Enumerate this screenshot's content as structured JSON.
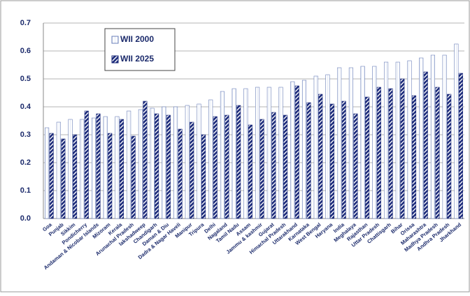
{
  "chart_data": {
    "type": "bar",
    "categories": [
      "Goa",
      "Punjab",
      "Sikkim",
      "Pondicherry",
      "Andaman & Nicobar Islands",
      "Mizoram",
      "Kerala",
      "Arunachal Pradesh",
      "lakshadweep",
      "Chandigarh",
      "Daman & Diu",
      "Dadra & Nagar Haveli",
      "Manipur",
      "Tripura",
      "Delhi",
      "Nagaland",
      "Tamil Nadu",
      "Assam",
      "Jammu & kashmir",
      "Gujarat",
      "Himachal Pradesh",
      "Uttarakhand",
      "Karnataka",
      "West Bengal",
      "Haryana",
      "India",
      "Meghalaya",
      "Rajasthan",
      "Uttar Pradesh",
      "Chattisgarh",
      "Bihar",
      "Orissa",
      "Maharashtra",
      "Madhya Pradesh",
      "Andhra Pradesh",
      "Jharkhand"
    ],
    "series": [
      {
        "name": "WII 2000",
        "color": "#e4eaf6",
        "values": [
          0.325,
          0.345,
          0.355,
          0.355,
          0.36,
          0.365,
          0.365,
          0.385,
          0.39,
          0.395,
          0.4,
          0.4,
          0.405,
          0.41,
          0.425,
          0.455,
          0.465,
          0.465,
          0.47,
          0.47,
          0.47,
          0.49,
          0.495,
          0.51,
          0.515,
          0.54,
          0.54,
          0.545,
          0.545,
          0.56,
          0.56,
          0.565,
          0.575,
          0.585,
          0.585,
          0.625
        ]
      },
      {
        "name": "WII 2025",
        "color": "#1b2a7a",
        "values": [
          0.305,
          0.285,
          0.3,
          0.385,
          0.375,
          0.305,
          0.355,
          0.295,
          0.42,
          0.375,
          0.37,
          0.32,
          0.345,
          0.3,
          0.365,
          0.37,
          0.405,
          0.335,
          0.355,
          0.38,
          0.37,
          0.475,
          0.415,
          0.445,
          0.41,
          0.42,
          0.375,
          0.435,
          0.47,
          0.465,
          0.5,
          0.44,
          0.525,
          0.47,
          0.445,
          0.52
        ]
      }
    ],
    "ylim": [
      0,
      0.7
    ],
    "yticks": [
      {
        "value": 0,
        "label": "0.0"
      },
      0.1,
      0.2,
      0.3,
      0.4,
      0.5,
      0.6,
      0.7
    ],
    "grid": true,
    "legend": "upper left"
  }
}
